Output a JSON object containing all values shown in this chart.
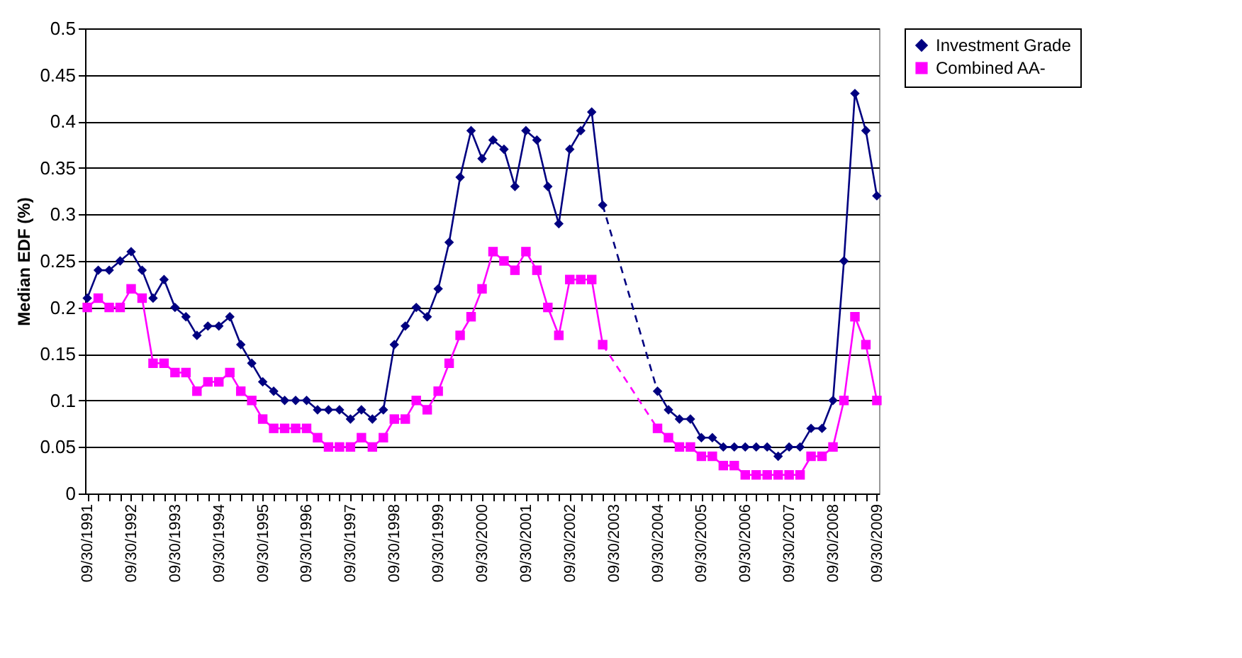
{
  "chart_data": {
    "type": "line",
    "ylabel": "Median EDF (%)",
    "categories": [
      "09/30/1991",
      null,
      null,
      null,
      "09/30/1992",
      null,
      null,
      null,
      "09/30/1993",
      null,
      null,
      null,
      "09/30/1994",
      null,
      null,
      null,
      "09/30/1995",
      null,
      null,
      null,
      "09/30/1996",
      null,
      null,
      null,
      "09/30/1997",
      null,
      null,
      null,
      "09/30/1998",
      null,
      null,
      null,
      "09/30/1999",
      null,
      null,
      null,
      "09/30/2000",
      null,
      null,
      null,
      "09/30/2001",
      null,
      null,
      null,
      "09/30/2002",
      null,
      null,
      null,
      "09/30/2003",
      null,
      null,
      null,
      "09/30/2004",
      null,
      null,
      null,
      "09/30/2005",
      null,
      null,
      null,
      "09/30/2006",
      null,
      null,
      null,
      "09/30/2007",
      null,
      null,
      null,
      "09/30/2008",
      null,
      null,
      null,
      "09/30/2009"
    ],
    "series": [
      {
        "name": "Investment Grade",
        "color": "#000080",
        "marker": "diamond",
        "values": [
          0.21,
          0.24,
          0.24,
          0.25,
          0.26,
          0.24,
          0.21,
          0.23,
          0.2,
          0.19,
          0.17,
          0.18,
          0.18,
          0.19,
          0.16,
          0.14,
          0.12,
          0.11,
          0.1,
          0.1,
          0.1,
          0.09,
          0.09,
          0.09,
          0.08,
          0.09,
          0.08,
          0.09,
          0.16,
          0.18,
          0.2,
          0.19,
          0.22,
          0.27,
          0.34,
          0.39,
          0.36,
          0.38,
          0.37,
          0.33,
          0.39,
          0.38,
          0.33,
          0.29,
          0.37,
          0.39,
          0.41,
          0.31,
          null,
          null,
          null,
          null,
          0.11,
          0.09,
          0.08,
          0.08,
          0.06,
          0.06,
          0.05,
          0.05,
          0.05,
          0.05,
          0.05,
          0.04,
          0.05,
          0.05,
          0.07,
          0.07,
          0.1,
          0.25,
          0.43,
          0.39,
          0.32
        ]
      },
      {
        "name": "Combined AA-",
        "color": "#ff00ff",
        "marker": "square",
        "values": [
          0.2,
          0.21,
          0.2,
          0.2,
          0.22,
          0.21,
          0.14,
          0.14,
          0.13,
          0.13,
          0.11,
          0.12,
          0.12,
          0.13,
          0.11,
          0.1,
          0.08,
          0.07,
          0.07,
          0.07,
          0.07,
          0.06,
          0.05,
          0.05,
          0.05,
          0.06,
          0.05,
          0.06,
          0.08,
          0.08,
          0.1,
          0.09,
          0.11,
          0.14,
          0.17,
          0.19,
          0.22,
          0.26,
          0.25,
          0.24,
          0.26,
          0.24,
          0.2,
          0.17,
          0.23,
          0.23,
          0.23,
          0.16,
          null,
          null,
          null,
          null,
          0.07,
          0.06,
          0.05,
          0.05,
          0.04,
          0.04,
          0.03,
          0.03,
          0.02,
          0.02,
          0.02,
          0.02,
          0.02,
          0.02,
          0.04,
          0.04,
          0.05,
          0.1,
          0.19,
          0.16,
          0.1
        ]
      }
    ],
    "ylim": [
      0,
      0.5
    ],
    "yticks": [
      0,
      0.05,
      0.1,
      0.15,
      0.2,
      0.25,
      0.3,
      0.35,
      0.4,
      0.45,
      0.5
    ],
    "grid": "y",
    "legend": "right"
  }
}
